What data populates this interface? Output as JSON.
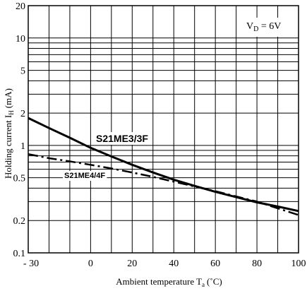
{
  "chart_data": {
    "type": "line",
    "title": "",
    "xlabel": "Ambient temperature T",
    "xlabel_sub": "a",
    "xlabel_unit": "(˚C)",
    "ylabel": "Holding current I",
    "ylabel_sub": "H",
    "ylabel_unit": "(mA)",
    "yscale": "log",
    "grid": true,
    "xlim": [
      -30,
      100
    ],
    "ylim": [
      0.1,
      20
    ],
    "xticks": [
      -30,
      0,
      20,
      40,
      60,
      80,
      100
    ],
    "xtick_labels": [
      "- 30",
      "0",
      "20",
      "40",
      "60",
      "80",
      "100"
    ],
    "yticks": [
      0.1,
      0.2,
      0.5,
      1,
      2,
      5,
      10,
      20
    ],
    "ytick_labels": [
      "0.1",
      "0.2",
      "0.5",
      "1",
      "2",
      "5",
      "10",
      "20"
    ],
    "annotation": {
      "main": "V",
      "sub": "D",
      "rest": " = 6V"
    },
    "series": [
      {
        "name": "S21ME3/3F",
        "style": "solid",
        "x": [
          -30,
          -20,
          -10,
          0,
          10,
          20,
          30,
          40,
          50,
          60,
          70,
          80,
          90,
          100
        ],
        "y": [
          1.8,
          1.45,
          1.18,
          0.95,
          0.79,
          0.66,
          0.56,
          0.48,
          0.42,
          0.37,
          0.33,
          0.295,
          0.27,
          0.245
        ]
      },
      {
        "name": "S21ME4/4F",
        "style": "dashdot",
        "x": [
          -30,
          -20,
          -10,
          0,
          10,
          20,
          30,
          40,
          50,
          60,
          70,
          80,
          90,
          100
        ],
        "y": [
          0.83,
          0.76,
          0.71,
          0.66,
          0.61,
          0.56,
          0.51,
          0.46,
          0.415,
          0.375,
          0.335,
          0.3,
          0.26,
          0.225
        ]
      }
    ]
  }
}
